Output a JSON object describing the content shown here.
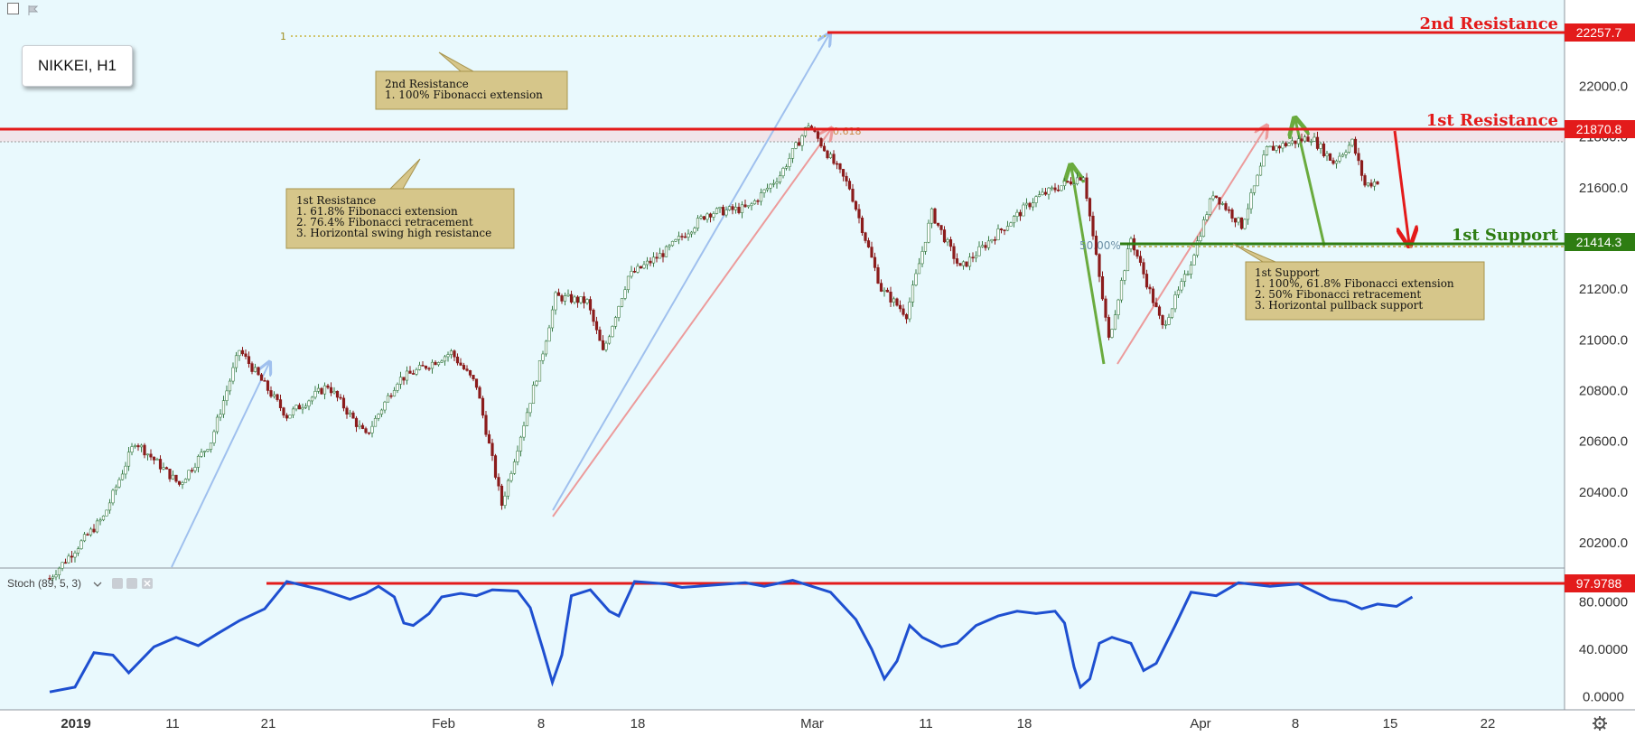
{
  "symbol": "NIKKEI, H1",
  "indicator": {
    "label": "Stoch (89, 5, 3)"
  },
  "colors": {
    "background": "#e9f9fd",
    "resistance": "#e31b1b",
    "support": "#2e7d12",
    "bull_candle": "#3c7d46",
    "bear_candle": "#8b1c1c",
    "stoch_line": "#1e4fd0",
    "callout_fill": "#d6c68a",
    "fib_blue": "#9fc0ee",
    "fib_pink": "#ec9b9b",
    "swing_green": "#6aab3e"
  },
  "levels": [
    {
      "name": "2nd Resistance",
      "price": 22257.7,
      "label": "22257.7"
    },
    {
      "name": "1st Resistance",
      "price": 21870.8,
      "label": "21870.8"
    },
    {
      "name": "1st Support",
      "price": 21414.3,
      "label": "21414.3"
    }
  ],
  "callouts": [
    {
      "title": "2nd Resistance",
      "lines": [
        "1. 100% Fibonacci extension"
      ]
    },
    {
      "title": "1st Resistance",
      "lines": [
        "1. 61.8% Fibonacci extension",
        "2. 76.4% Fibonacci retracement",
        "3. Horizontal swing high resistance"
      ]
    },
    {
      "title": "1st Support",
      "lines": [
        "1. 100%, 61.8% Fibonacci extension",
        "2. 50% Fibonacci retracement",
        "3. Horizontal pullback support"
      ]
    }
  ],
  "fib_labels": {
    "one": "1",
    "r618": "0.618",
    "r50": "50.00%"
  },
  "chart_data": {
    "type": "candlestick",
    "x_ticks": [
      "2019",
      "11",
      "21",
      "Feb",
      "8",
      "18",
      "Mar",
      "11",
      "18",
      "Apr",
      "8",
      "15",
      "22"
    ],
    "y_ticks": [
      "20200.0",
      "20400.0",
      "20600.0",
      "20800.0",
      "21000.0",
      "21200.0",
      "21400.0",
      "21600.0",
      "21800.0",
      "22000.0",
      "22200.0"
    ],
    "ylim": [
      20100,
      22340
    ],
    "price_path": [
      [
        0,
        20060
      ],
      [
        17,
        20300
      ],
      [
        27,
        20600
      ],
      [
        41,
        20430
      ],
      [
        51,
        20600
      ],
      [
        60,
        20960
      ],
      [
        75,
        20700
      ],
      [
        88,
        20820
      ],
      [
        100,
        20620
      ],
      [
        110,
        20840
      ],
      [
        118,
        20890
      ],
      [
        127,
        20950
      ],
      [
        135,
        20820
      ],
      [
        143,
        20350
      ],
      [
        155,
        20900
      ],
      [
        160,
        21170
      ],
      [
        170,
        21150
      ],
      [
        175,
        20950
      ],
      [
        183,
        21250
      ],
      [
        195,
        21350
      ],
      [
        208,
        21500
      ],
      [
        221,
        21520
      ],
      [
        231,
        21650
      ],
      [
        240,
        21850
      ],
      [
        253,
        21600
      ],
      [
        263,
        21200
      ],
      [
        271,
        21100
      ],
      [
        279,
        21500
      ],
      [
        288,
        21280
      ],
      [
        298,
        21400
      ],
      [
        312,
        21560
      ],
      [
        327,
        21650
      ],
      [
        335,
        21000
      ],
      [
        342,
        21400
      ],
      [
        352,
        21050
      ],
      [
        360,
        21270
      ],
      [
        368,
        21580
      ],
      [
        377,
        21450
      ],
      [
        385,
        21750
      ],
      [
        399,
        21800
      ],
      [
        406,
        21700
      ],
      [
        412,
        21780
      ],
      [
        416,
        21610
      ],
      [
        428,
        21660
      ],
      [
        437,
        21820
      ]
    ],
    "stoch": {
      "levels": [
        {
          "label": "80.0000",
          "value": 80
        },
        {
          "label": "40.0000",
          "value": 40
        },
        {
          "label": "0.0000",
          "value": 0
        }
      ],
      "ylim": [
        -5,
        100
      ],
      "marker": {
        "label": "97.9788",
        "value": 97.9788
      },
      "path": [
        [
          0,
          4
        ],
        [
          8,
          8
        ],
        [
          14,
          37
        ],
        [
          20,
          35
        ],
        [
          25,
          20
        ],
        [
          33,
          42
        ],
        [
          40,
          50
        ],
        [
          47,
          43
        ],
        [
          53,
          53
        ],
        [
          60,
          64
        ],
        [
          68,
          74
        ],
        [
          75,
          97
        ],
        [
          86,
          90
        ],
        [
          95,
          82
        ],
        [
          100,
          87
        ],
        [
          104,
          93
        ],
        [
          109,
          84
        ],
        [
          112,
          62
        ],
        [
          115,
          60
        ],
        [
          120,
          70
        ],
        [
          124,
          84
        ],
        [
          130,
          87
        ],
        [
          135,
          85
        ],
        [
          140,
          90
        ],
        [
          148,
          89
        ],
        [
          152,
          75
        ],
        [
          156,
          40
        ],
        [
          159,
          12
        ],
        [
          162,
          35
        ],
        [
          165,
          85
        ],
        [
          171,
          90
        ],
        [
          177,
          72
        ],
        [
          180,
          68
        ],
        [
          185,
          97
        ],
        [
          195,
          95
        ],
        [
          200,
          92
        ],
        [
          210,
          94
        ],
        [
          220,
          96
        ],
        [
          226,
          93
        ],
        [
          235,
          98
        ],
        [
          247,
          88
        ],
        [
          255,
          65
        ],
        [
          260,
          40
        ],
        [
          264,
          15
        ],
        [
          268,
          30
        ],
        [
          272,
          60
        ],
        [
          276,
          50
        ],
        [
          282,
          42
        ],
        [
          287,
          45
        ],
        [
          293,
          60
        ],
        [
          300,
          68
        ],
        [
          306,
          72
        ],
        [
          312,
          70
        ],
        [
          318,
          72
        ],
        [
          321,
          62
        ],
        [
          324,
          25
        ],
        [
          326,
          8
        ],
        [
          329,
          15
        ],
        [
          332,
          45
        ],
        [
          336,
          50
        ],
        [
          342,
          45
        ],
        [
          346,
          22
        ],
        [
          350,
          28
        ],
        [
          356,
          60
        ],
        [
          361,
          88
        ],
        [
          369,
          85
        ],
        [
          376,
          96
        ],
        [
          386,
          93
        ],
        [
          395,
          95
        ],
        [
          405,
          82
        ],
        [
          410,
          80
        ],
        [
          415,
          74
        ],
        [
          420,
          78
        ],
        [
          426,
          76
        ],
        [
          431,
          84
        ]
      ]
    }
  }
}
